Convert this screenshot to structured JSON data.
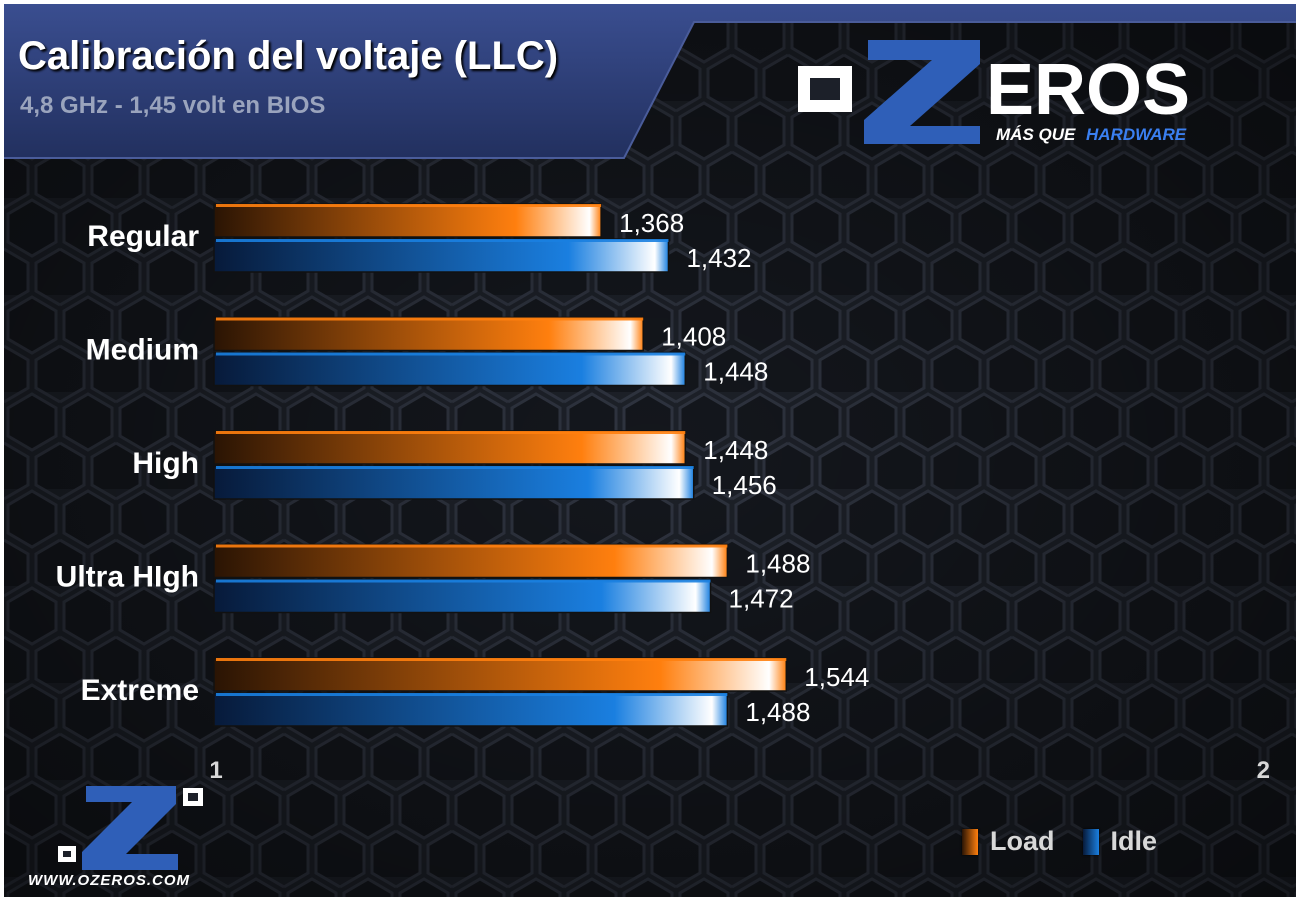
{
  "header": {
    "title": "Calibración del voltaje (LLC)",
    "subtitle": "4,8 GHz - 1,45 volt en  BIOS"
  },
  "logo": {
    "brand_o": "O",
    "brand_z": "Z",
    "brand_rest": "EROS",
    "tagline_a": "MÁS QUE",
    "tagline_b": "HARDWARE"
  },
  "footer": {
    "site_url": "WWW.OZEROS.COM"
  },
  "colors": {
    "load": "#ff7f0e",
    "idle": "#1a7fe0",
    "header_band": "#2c3e78",
    "background": "#1c2029"
  },
  "chart_data": {
    "type": "bar",
    "orientation": "horizontal",
    "title": "Calibración del voltaje (LLC)",
    "subtitle": "4,8 GHz - 1,45 volt en  BIOS",
    "categories": [
      "Regular",
      "Medium",
      "High",
      "Ultra HIgh",
      "Extreme"
    ],
    "series": [
      {
        "name": "Load",
        "values": [
          1.368,
          1.408,
          1.448,
          1.488,
          1.544
        ],
        "labels": [
          "1,368",
          "1,408",
          "1,448",
          "1,488",
          "1,544"
        ]
      },
      {
        "name": "Idle",
        "values": [
          1.432,
          1.448,
          1.456,
          1.472,
          1.488
        ],
        "labels": [
          "1,432",
          "1,448",
          "1,456",
          "1,472",
          "1,488"
        ]
      }
    ],
    "xlim": [
      1,
      2
    ],
    "xticks": [
      "1",
      "2"
    ],
    "grid": false,
    "legend": "bottom-right"
  }
}
